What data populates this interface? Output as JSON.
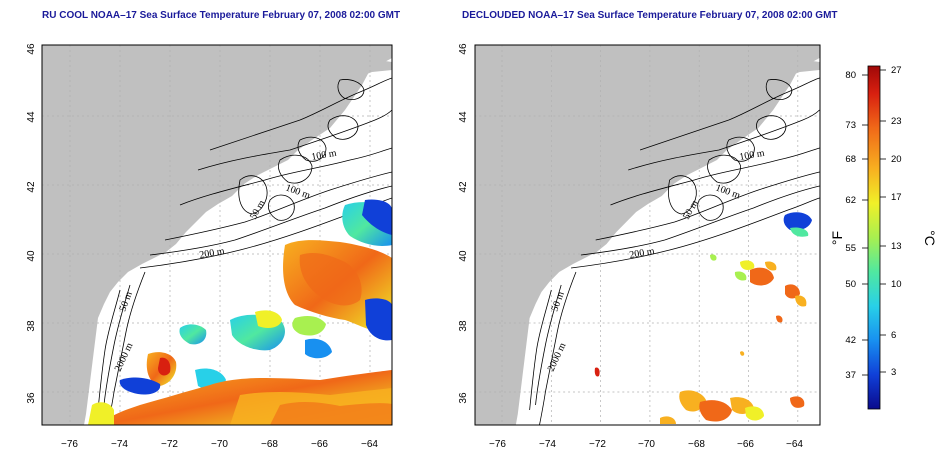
{
  "panels": [
    {
      "title": "RU COOL NOAA–17 Sea Surface Temperature February 07, 2008 02:00 GMT",
      "type": "raw"
    },
    {
      "title": "DECLOUDED NOAA–17 Sea Surface Temperature February 07, 2008 02:00 GMT",
      "type": "declouded"
    }
  ],
  "axes": {
    "lon_ticks": [
      "−76",
      "−74",
      "−72",
      "−70",
      "−68",
      "−66",
      "−64"
    ],
    "lat_ticks": [
      "36",
      "38",
      "40",
      "42",
      "44",
      "46"
    ],
    "lon_range": [
      -77,
      -63
    ],
    "lat_range": [
      35,
      46
    ]
  },
  "contour_labels": [
    "100 m",
    "100 m",
    "50 m",
    "200 m",
    "50 m",
    "2000 m"
  ],
  "colorbar": {
    "f_unit": "°F",
    "c_unit": "°C",
    "f_labels": [
      "80",
      "73",
      "68",
      "62",
      "55",
      "50",
      "42",
      "37"
    ],
    "c_labels": [
      "27",
      "23",
      "20",
      "17",
      "13",
      "10",
      "6",
      "3"
    ],
    "colors": [
      "#0a0a8c",
      "#1040d8",
      "#1890f0",
      "#28d0e8",
      "#50e8a0",
      "#a8f050",
      "#f0f028",
      "#f8b020",
      "#f06818",
      "#d82010",
      "#a00808"
    ]
  },
  "colors": {
    "land": "#c0c0c0",
    "ocean": "#ffffff",
    "grid": "#b0b0b0",
    "title": "#1a1a9a"
  }
}
